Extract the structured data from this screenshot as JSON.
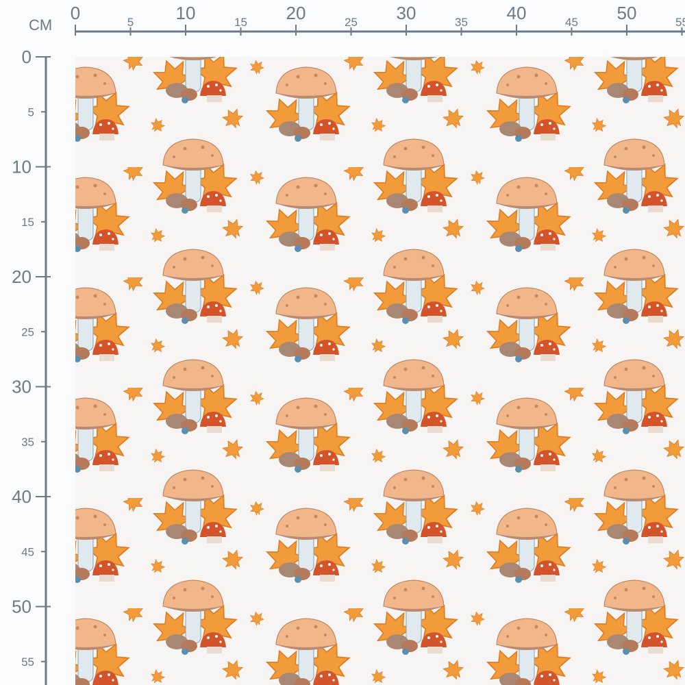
{
  "ruler": {
    "unit": "CM",
    "top_labels": [
      0,
      5,
      10,
      15,
      20,
      25,
      30,
      35,
      40,
      45,
      50,
      55
    ],
    "left_labels": [
      0,
      5,
      10,
      15,
      20,
      25,
      30,
      35,
      40,
      45,
      50,
      55
    ],
    "color": "#6f7a82"
  },
  "fabric": {
    "motif": "mushroom-with-autumn-leaves",
    "background_color": "#f7f4f4",
    "cap_color": "#f1b78a",
    "leaf_color": "#f29b3a",
    "stem_color": "#dfe9ee"
  }
}
